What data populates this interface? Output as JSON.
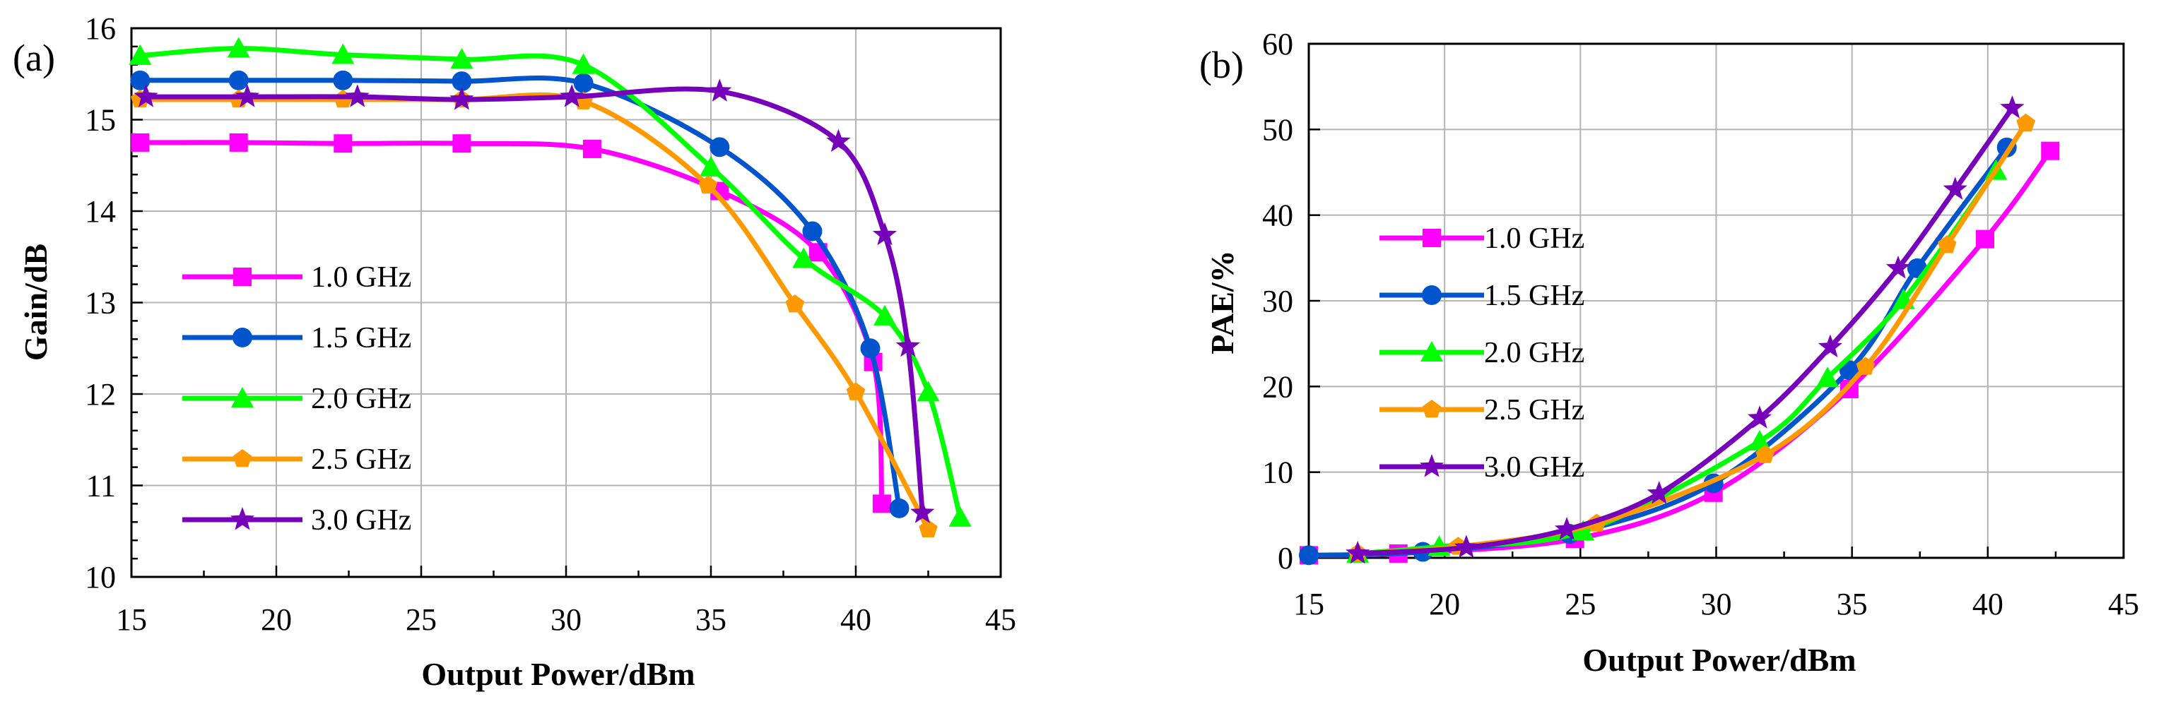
{
  "chart_data": [
    {
      "type": "line",
      "panel_label": "(a)",
      "xlabel": "Output Power/dBm",
      "ylabel": "Gain/dB",
      "xlim": [
        15,
        45
      ],
      "ylim": [
        10,
        16
      ],
      "xticks": [
        "15",
        "20",
        "25",
        "30",
        "35",
        "40",
        "45"
      ],
      "yticks": [
        "10",
        "11",
        "12",
        "13",
        "14",
        "15",
        "16"
      ],
      "grid": true,
      "legend_position": "center-left",
      "series": [
        {
          "name": "1.0 GHz",
          "color": "#ff00ff",
          "marker": "square",
          "x": [
            15.3,
            18.7,
            22.3,
            26.4,
            30.9,
            35.3,
            38.7,
            40.6,
            40.9
          ],
          "y": [
            14.75,
            14.75,
            14.74,
            14.74,
            14.68,
            14.22,
            13.55,
            12.35,
            10.8
          ]
        },
        {
          "name": "1.5 GHz",
          "color": "#0055cc",
          "marker": "circle",
          "x": [
            15.3,
            18.7,
            22.3,
            26.4,
            30.6,
            35.3,
            38.5,
            40.5,
            41.5
          ],
          "y": [
            15.43,
            15.43,
            15.43,
            15.42,
            15.4,
            14.7,
            13.78,
            12.5,
            10.75
          ]
        },
        {
          "name": "2.0 GHz",
          "color": "#00ff00",
          "marker": "triangle",
          "x": [
            15.3,
            18.7,
            22.3,
            26.4,
            30.6,
            35.0,
            38.2,
            41.0,
            42.5,
            43.6
          ],
          "y": [
            15.7,
            15.78,
            15.71,
            15.66,
            15.6,
            14.48,
            13.48,
            12.85,
            12.02,
            10.65
          ]
        },
        {
          "name": "2.5 GHz",
          "color": "#ff9900",
          "marker": "pentagon",
          "x": [
            15.3,
            18.7,
            22.3,
            26.4,
            30.6,
            34.9,
            37.9,
            40.0,
            42.5
          ],
          "y": [
            15.22,
            15.22,
            15.22,
            15.22,
            15.2,
            14.28,
            12.98,
            12.02,
            10.52
          ]
        },
        {
          "name": "3.0 GHz",
          "color": "#7700bb",
          "marker": "star",
          "x": [
            15.5,
            19.0,
            22.8,
            26.4,
            30.2,
            35.3,
            39.4,
            41.0,
            41.8,
            42.3
          ],
          "y": [
            15.25,
            15.25,
            15.25,
            15.22,
            15.25,
            15.31,
            14.76,
            13.74,
            12.52,
            10.7
          ]
        }
      ]
    },
    {
      "type": "line",
      "panel_label": "(b)",
      "xlabel": "Output Power/dBm",
      "ylabel": "PAE/%",
      "xlim": [
        15,
        45
      ],
      "ylim": [
        0,
        60
      ],
      "xticks": [
        "15",
        "20",
        "25",
        "30",
        "35",
        "40",
        "45"
      ],
      "yticks": [
        "0",
        "10",
        "20",
        "30",
        "40",
        "50",
        "60"
      ],
      "grid": true,
      "legend_position": "upper-left",
      "series": [
        {
          "name": "1.0 GHz",
          "color": "#ff00ff",
          "marker": "square",
          "x": [
            15.0,
            18.3,
            24.8,
            29.9,
            34.9,
            39.9,
            42.3
          ],
          "y": [
            0.3,
            0.5,
            2.2,
            7.6,
            19.7,
            37.2,
            47.5
          ]
        },
        {
          "name": "1.5 GHz",
          "color": "#0055cc",
          "marker": "circle",
          "x": [
            15.0,
            19.2,
            24.6,
            29.9,
            34.9,
            37.4,
            40.7
          ],
          "y": [
            0.3,
            0.7,
            2.8,
            8.7,
            21.9,
            33.8,
            47.9
          ]
        },
        {
          "name": "2.0 GHz",
          "color": "#00ff00",
          "marker": "triangle",
          "x": [
            16.8,
            19.8,
            25.1,
            31.6,
            34.1,
            36.9,
            40.3
          ],
          "y": [
            0.5,
            1.3,
            3.1,
            13.6,
            21.0,
            30.1,
            45.2
          ]
        },
        {
          "name": "2.5 GHz",
          "color": "#ff9900",
          "marker": "pentagon",
          "x": [
            16.8,
            20.5,
            25.6,
            31.8,
            35.5,
            38.5,
            41.4
          ],
          "y": [
            0.5,
            1.3,
            4.0,
            12.0,
            22.3,
            36.5,
            50.7
          ]
        },
        {
          "name": "3.0 GHz",
          "color": "#7700bb",
          "marker": "star",
          "x": [
            16.8,
            20.8,
            24.5,
            27.9,
            31.6,
            34.2,
            36.7,
            38.8,
            40.9
          ],
          "y": [
            0.5,
            1.2,
            3.3,
            7.5,
            16.3,
            24.6,
            33.8,
            43.0,
            52.5
          ]
        }
      ]
    }
  ]
}
